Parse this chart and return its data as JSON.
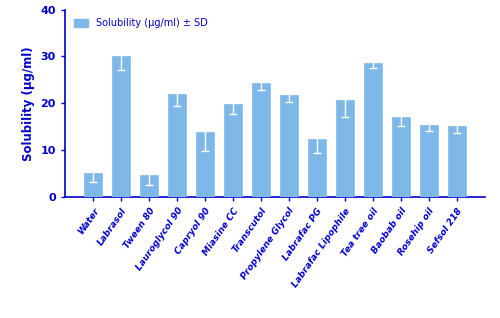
{
  "categories": [
    "Water",
    "Labrasol",
    "Tween 80",
    "Lauroglycol 90",
    "Capryol 90",
    "Miasine CC",
    "Transcutol",
    "Propylene Glycol",
    "Labrafac PG",
    "Labrafac Lipophile",
    "Tea tree oil",
    "Baobab oil",
    "Rosehip oil",
    "Sefsol 218"
  ],
  "values": [
    5.2,
    30.0,
    4.8,
    22.0,
    13.8,
    19.8,
    24.3,
    21.8,
    12.3,
    20.8,
    28.7,
    17.0,
    15.4,
    15.2
  ],
  "errors": [
    2.0,
    2.8,
    2.2,
    2.5,
    4.0,
    2.0,
    1.5,
    1.5,
    2.8,
    3.8,
    1.2,
    1.8,
    1.2,
    1.5
  ],
  "ylabel": "Solubility (μg/ml)",
  "ylim": [
    0,
    40
  ],
  "yticks": [
    0,
    10,
    20,
    30,
    40
  ],
  "legend_label": "Solubility (μg/ml) ± SD",
  "axis_color": "#0000CC",
  "label_color": "#0000CC",
  "bar_color_hex": "#7EB8E8",
  "capsize": 3,
  "bar_width": 0.65
}
